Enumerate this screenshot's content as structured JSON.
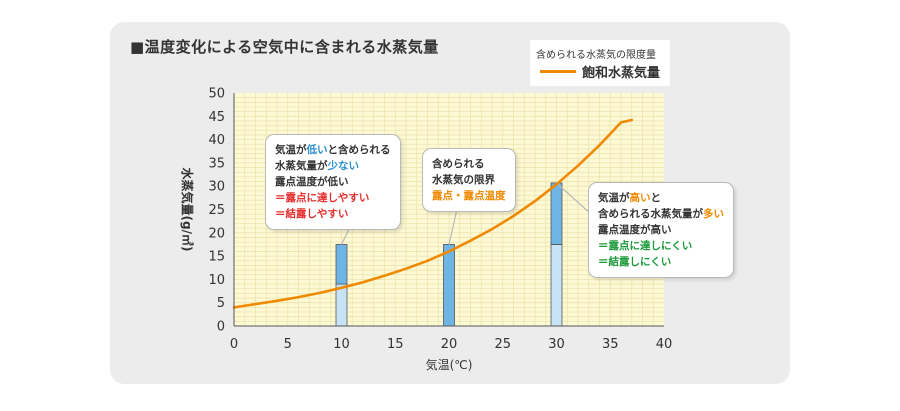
{
  "title": "■温度変化による空気中に含まれる水蒸気量",
  "legend": {
    "note": "含められる水蒸気の限度量",
    "label": "飽和水蒸気量",
    "color": "#ef8a00"
  },
  "colors": {
    "plot_bg": "#fdf9d5",
    "grid": "#ece4ad",
    "curve": "#ef8a00",
    "bar_light": "#c6e4f6",
    "bar_dark": "#6eb4e4",
    "bar_border": "#555555",
    "text_blue": "#2b8fd1",
    "text_red": "#e62e2e",
    "text_orange": "#ef8a00",
    "text_green": "#1e9a3b"
  },
  "callouts": {
    "low": {
      "l1a": "気温が",
      "l1b": "低い",
      "l1c": "と含められる",
      "l2a": "水蒸気量が",
      "l2b": "少ない",
      "l3": "露点温度が低い",
      "l4": "＝露点に達しやすい",
      "l5": "＝結露しやすい"
    },
    "mid": {
      "l1": "含められる",
      "l2": "水蒸気の限界",
      "l3": "露点・露点温度"
    },
    "high": {
      "l1a": "気温が",
      "l1b": "高い",
      "l1c": "と",
      "l2a": "含められる水蒸気量が",
      "l2b": "多い",
      "l3": "露点温度が高い",
      "l4": "＝露点に達しにくい",
      "l5": "＝結露しにくい"
    }
  },
  "chart_data": {
    "type": "line",
    "title": "■温度変化による空気中に含まれる水蒸気量",
    "xlabel": "気温(℃)",
    "ylabel": "水蒸気量(g/㎥)",
    "xlim": [
      0,
      40
    ],
    "ylim": [
      0,
      50
    ],
    "x_ticks": [
      0,
      5,
      10,
      15,
      20,
      25,
      30,
      35,
      40
    ],
    "y_ticks": [
      0,
      5,
      10,
      15,
      20,
      25,
      30,
      35,
      40,
      45,
      50
    ],
    "grid": true,
    "legend_position": "top-right",
    "series": [
      {
        "name": "飽和水蒸気量",
        "x": [
          0,
          2,
          4,
          6,
          8,
          10,
          12,
          14,
          16,
          18,
          20,
          22,
          24,
          26,
          28,
          30,
          32,
          34,
          36,
          37
        ],
        "y": [
          4.0,
          4.7,
          5.4,
          6.2,
          7.1,
          8.2,
          9.4,
          10.8,
          12.3,
          14.0,
          16.0,
          18.3,
          20.8,
          23.6,
          26.8,
          30.4,
          34.4,
          38.8,
          43.7,
          44.2
        ]
      }
    ],
    "bars": [
      {
        "x": 10,
        "lower": 9.0,
        "upper": 17.5
      },
      {
        "x": 20,
        "lower": 0,
        "upper": 17.5
      },
      {
        "x": 30,
        "lower": 17.5,
        "upper": 30.7
      }
    ]
  }
}
